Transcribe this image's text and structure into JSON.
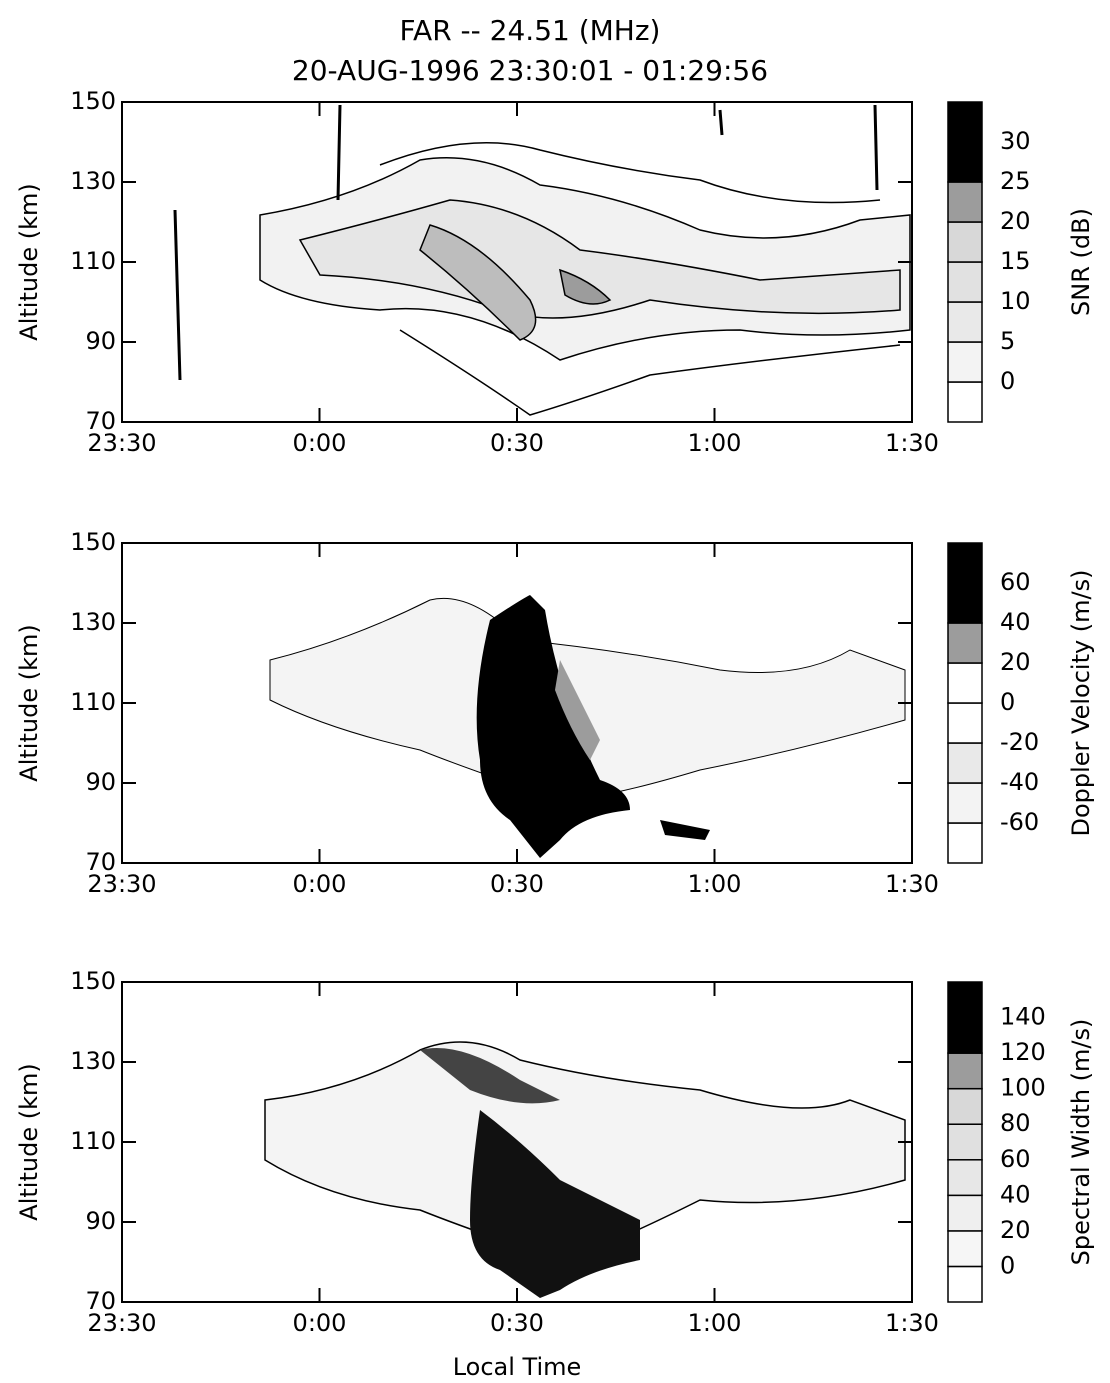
{
  "chart_data": [
    {
      "type": "heatmap",
      "title": "FAR -- 24.51 (MHz)",
      "subtitle": "20-AUG-1996   23:30:01 - 01:29:56",
      "ylabel": "Altitude (km)",
      "xlim": [
        0,
        120
      ],
      "xticks": [
        {
          "value": 0,
          "label": "23:30"
        },
        {
          "value": 30,
          "label": "0:00"
        },
        {
          "value": 60,
          "label": "0:30"
        },
        {
          "value": 90,
          "label": "1:00"
        },
        {
          "value": 120,
          "label": "1:30"
        }
      ],
      "ylim": [
        70,
        150
      ],
      "yticks": [
        70,
        90,
        110,
        130,
        150
      ],
      "colorbar": {
        "label": "SNR (dB)",
        "lim": [
          -5,
          35
        ],
        "ticks": [
          0,
          5,
          10,
          15,
          20,
          25,
          30
        ],
        "levels": [
          -5,
          0,
          5,
          10,
          15,
          20,
          25,
          35
        ],
        "colors": [
          "#ffffff",
          "#f3f3f3",
          "#e9e9e9",
          "#e1e1e1",
          "#d8d8d8",
          "#9c9c9c",
          "#000000"
        ]
      }
    },
    {
      "type": "heatmap",
      "ylabel": "Altitude (km)",
      "xlim": [
        0,
        120
      ],
      "xticks": [
        {
          "value": 0,
          "label": "23:30"
        },
        {
          "value": 30,
          "label": "0:00"
        },
        {
          "value": 60,
          "label": "0:30"
        },
        {
          "value": 90,
          "label": "1:00"
        },
        {
          "value": 120,
          "label": "1:30"
        }
      ],
      "ylim": [
        70,
        150
      ],
      "yticks": [
        70,
        90,
        110,
        130,
        150
      ],
      "colorbar": {
        "label": "Doppler Velocity (m/s)",
        "lim": [
          -80,
          80
        ],
        "ticks": [
          -60,
          -40,
          -20,
          0,
          20,
          40,
          60
        ],
        "levels": [
          -80,
          -60,
          -40,
          -20,
          0,
          20,
          40,
          80
        ],
        "colors": [
          "#ffffff",
          "#f3f3f3",
          "#e9e9e9",
          "#ffffff",
          "#ffffff",
          "#9c9c9c",
          "#000000"
        ]
      }
    },
    {
      "type": "heatmap",
      "ylabel": "Altitude (km)",
      "xlabel": "Local Time",
      "xlim": [
        0,
        120
      ],
      "xticks": [
        {
          "value": 0,
          "label": "23:30"
        },
        {
          "value": 30,
          "label": "0:00"
        },
        {
          "value": 60,
          "label": "0:30"
        },
        {
          "value": 90,
          "label": "1:00"
        },
        {
          "value": 120,
          "label": "1:30"
        }
      ],
      "ylim": [
        70,
        150
      ],
      "yticks": [
        70,
        90,
        110,
        130,
        150
      ],
      "colorbar": {
        "label": "Spectral Width (m/s)",
        "lim": [
          -20,
          160
        ],
        "ticks": [
          0,
          20,
          40,
          60,
          80,
          100,
          120,
          140
        ],
        "levels": [
          -20,
          0,
          20,
          40,
          60,
          80,
          100,
          120,
          160
        ],
        "colors": [
          "#ffffff",
          "#f6f6f6",
          "#efefef",
          "#e7e7e7",
          "#e0e0e0",
          "#d8d8d8",
          "#9c9c9c",
          "#000000"
        ]
      }
    }
  ]
}
